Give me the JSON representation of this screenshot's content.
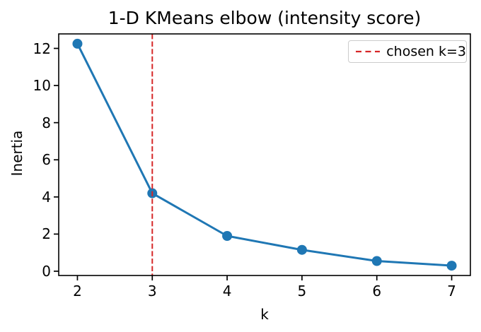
{
  "chart_data": {
    "type": "line",
    "title": "1-D KMeans elbow (intensity score)",
    "xlabel": "k",
    "ylabel": "Inertia",
    "x": [
      2,
      3,
      4,
      5,
      6,
      7
    ],
    "series": [
      {
        "name": "inertia",
        "values": [
          12.25,
          4.2,
          1.9,
          1.15,
          0.55,
          0.3
        ],
        "color": "#1f77b4",
        "marker": "circle",
        "linewidth": 3,
        "marker_radius": 7
      }
    ],
    "xticks": [
      2,
      3,
      4,
      5,
      6,
      7
    ],
    "yticks": [
      0,
      2,
      4,
      6,
      8,
      10,
      12
    ],
    "xlim": [
      1.75,
      7.25
    ],
    "ylim": [
      -0.23,
      12.78
    ],
    "grid": false,
    "vline": {
      "x": 3,
      "color": "#d62728",
      "style": "dashed",
      "linewidth": 2
    },
    "legend": {
      "position": "upper right",
      "entries": [
        {
          "label": "chosen k=3",
          "color": "#d62728",
          "style": "dashed"
        }
      ]
    }
  },
  "colors": {
    "background": "#ffffff",
    "spine": "#000000",
    "text": "#000000",
    "legend_border": "#cccccc",
    "series_blue": "#1f77b4",
    "vline_red": "#d62728"
  }
}
